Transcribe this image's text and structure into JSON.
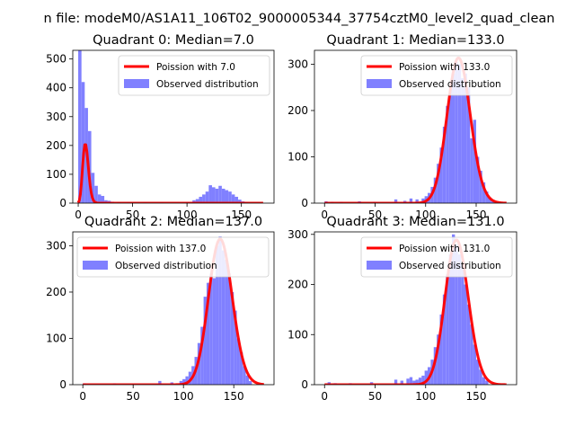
{
  "figure": {
    "suptitle": "n file: modeM0/AS1A11_106T02_9000005344_37754cztM0_level2_quad_clean"
  },
  "chart_data": [
    {
      "type": "bar",
      "title": "Quadrant 0: Median=7.0",
      "xlim": [
        -5,
        180
      ],
      "ylim": [
        0,
        530
      ],
      "xticks": [
        0,
        50,
        100,
        150
      ],
      "yticks": [
        0,
        100,
        200,
        300,
        400,
        500
      ],
      "legend_position": "top-right",
      "series": [
        {
          "name": "Poission with 7.0",
          "kind": "line",
          "color": "#ff0000",
          "lambda": 7.0,
          "scale": 1360,
          "x_range": [
            0,
            170
          ]
        },
        {
          "name": "Observed distribution",
          "kind": "histogram",
          "color": "#8080ff",
          "bars": [
            {
              "x0": 0,
              "x1": 3,
              "y": 530
            },
            {
              "x0": 3,
              "x1": 6,
              "y": 420
            },
            {
              "x0": 6,
              "x1": 9,
              "y": 330
            },
            {
              "x0": 9,
              "x1": 12,
              "y": 250
            },
            {
              "x0": 12,
              "x1": 15,
              "y": 105
            },
            {
              "x0": 15,
              "x1": 18,
              "y": 60
            },
            {
              "x0": 18,
              "x1": 21,
              "y": 30
            },
            {
              "x0": 21,
              "x1": 24,
              "y": 25
            },
            {
              "x0": 24,
              "x1": 27,
              "y": 10
            },
            {
              "x0": 27,
              "x1": 30,
              "y": 8
            },
            {
              "x0": 30,
              "x1": 33,
              "y": 5
            },
            {
              "x0": 36,
              "x1": 39,
              "y": 4
            },
            {
              "x0": 45,
              "x1": 48,
              "y": 3
            },
            {
              "x0": 60,
              "x1": 63,
              "y": 2
            },
            {
              "x0": 75,
              "x1": 78,
              "y": 3
            },
            {
              "x0": 99,
              "x1": 102,
              "y": 4
            },
            {
              "x0": 105,
              "x1": 108,
              "y": 10
            },
            {
              "x0": 108,
              "x1": 111,
              "y": 14
            },
            {
              "x0": 111,
              "x1": 114,
              "y": 22
            },
            {
              "x0": 114,
              "x1": 117,
              "y": 30
            },
            {
              "x0": 117,
              "x1": 120,
              "y": 40
            },
            {
              "x0": 120,
              "x1": 123,
              "y": 62
            },
            {
              "x0": 123,
              "x1": 126,
              "y": 55
            },
            {
              "x0": 126,
              "x1": 129,
              "y": 50
            },
            {
              "x0": 129,
              "x1": 132,
              "y": 60
            },
            {
              "x0": 132,
              "x1": 135,
              "y": 50
            },
            {
              "x0": 135,
              "x1": 138,
              "y": 45
            },
            {
              "x0": 138,
              "x1": 141,
              "y": 40
            },
            {
              "x0": 141,
              "x1": 144,
              "y": 30
            },
            {
              "x0": 144,
              "x1": 147,
              "y": 22
            },
            {
              "x0": 147,
              "x1": 150,
              "y": 12
            },
            {
              "x0": 150,
              "x1": 153,
              "y": 6
            },
            {
              "x0": 153,
              "x1": 156,
              "y": 3
            }
          ]
        }
      ]
    },
    {
      "type": "bar",
      "title": "Quadrant 1: Median=133.0",
      "xlim": [
        -10,
        190
      ],
      "ylim": [
        0,
        330
      ],
      "xticks": [
        0,
        50,
        100,
        150
      ],
      "yticks": [
        0,
        100,
        200,
        300
      ],
      "legend_position": "top-right",
      "series": [
        {
          "name": "Poission with 133.0",
          "kind": "line",
          "color": "#ff0000",
          "lambda": 133.0,
          "scale": 9070,
          "x_range": [
            0,
            180
          ]
        },
        {
          "name": "Observed distribution",
          "kind": "histogram",
          "color": "#8080ff",
          "bars": [
            {
              "x0": 0,
              "x1": 3,
              "y": 4
            },
            {
              "x0": 6,
              "x1": 9,
              "y": 3
            },
            {
              "x0": 15,
              "x1": 18,
              "y": 3
            },
            {
              "x0": 33,
              "x1": 36,
              "y": 4
            },
            {
              "x0": 48,
              "x1": 51,
              "y": 3
            },
            {
              "x0": 69,
              "x1": 72,
              "y": 8
            },
            {
              "x0": 78,
              "x1": 81,
              "y": 5
            },
            {
              "x0": 84,
              "x1": 87,
              "y": 10
            },
            {
              "x0": 90,
              "x1": 93,
              "y": 8
            },
            {
              "x0": 96,
              "x1": 99,
              "y": 10
            },
            {
              "x0": 99,
              "x1": 102,
              "y": 15
            },
            {
              "x0": 102,
              "x1": 105,
              "y": 22
            },
            {
              "x0": 105,
              "x1": 108,
              "y": 35
            },
            {
              "x0": 108,
              "x1": 111,
              "y": 55
            },
            {
              "x0": 111,
              "x1": 114,
              "y": 85
            },
            {
              "x0": 114,
              "x1": 117,
              "y": 120
            },
            {
              "x0": 117,
              "x1": 120,
              "y": 165
            },
            {
              "x0": 120,
              "x1": 123,
              "y": 210
            },
            {
              "x0": 123,
              "x1": 126,
              "y": 245
            },
            {
              "x0": 126,
              "x1": 129,
              "y": 280
            },
            {
              "x0": 129,
              "x1": 132,
              "y": 305
            },
            {
              "x0": 132,
              "x1": 135,
              "y": 300
            },
            {
              "x0": 135,
              "x1": 138,
              "y": 270
            },
            {
              "x0": 138,
              "x1": 141,
              "y": 280
            },
            {
              "x0": 141,
              "x1": 144,
              "y": 250
            },
            {
              "x0": 144,
              "x1": 147,
              "y": 140
            },
            {
              "x0": 147,
              "x1": 150,
              "y": 180
            },
            {
              "x0": 150,
              "x1": 153,
              "y": 100
            },
            {
              "x0": 153,
              "x1": 156,
              "y": 70
            },
            {
              "x0": 156,
              "x1": 159,
              "y": 45
            },
            {
              "x0": 159,
              "x1": 162,
              "y": 25
            },
            {
              "x0": 162,
              "x1": 165,
              "y": 12
            },
            {
              "x0": 165,
              "x1": 168,
              "y": 5
            }
          ]
        }
      ]
    },
    {
      "type": "bar",
      "title": "Quadrant 2: Median=137.0",
      "xlim": [
        -10,
        190
      ],
      "ylim": [
        0,
        330
      ],
      "xticks": [
        0,
        50,
        100,
        150
      ],
      "yticks": [
        0,
        100,
        200,
        300
      ],
      "legend_position": "top-left",
      "series": [
        {
          "name": "Poission with 137.0",
          "kind": "line",
          "color": "#ff0000",
          "lambda": 137.0,
          "scale": 9230,
          "x_range": [
            0,
            180
          ]
        },
        {
          "name": "Observed distribution",
          "kind": "histogram",
          "color": "#8080ff",
          "bars": [
            {
              "x0": 0,
              "x1": 3,
              "y": 3
            },
            {
              "x0": 30,
              "x1": 33,
              "y": 3
            },
            {
              "x0": 75,
              "x1": 78,
              "y": 8
            },
            {
              "x0": 87,
              "x1": 90,
              "y": 5
            },
            {
              "x0": 96,
              "x1": 99,
              "y": 8
            },
            {
              "x0": 99,
              "x1": 102,
              "y": 12
            },
            {
              "x0": 102,
              "x1": 105,
              "y": 18
            },
            {
              "x0": 105,
              "x1": 108,
              "y": 28
            },
            {
              "x0": 108,
              "x1": 111,
              "y": 40
            },
            {
              "x0": 111,
              "x1": 114,
              "y": 60
            },
            {
              "x0": 114,
              "x1": 117,
              "y": 90
            },
            {
              "x0": 117,
              "x1": 120,
              "y": 125
            },
            {
              "x0": 120,
              "x1": 123,
              "y": 190
            },
            {
              "x0": 123,
              "x1": 126,
              "y": 220
            },
            {
              "x0": 126,
              "x1": 129,
              "y": 240
            },
            {
              "x0": 129,
              "x1": 132,
              "y": 230
            },
            {
              "x0": 132,
              "x1": 135,
              "y": 300
            },
            {
              "x0": 135,
              "x1": 138,
              "y": 320
            },
            {
              "x0": 138,
              "x1": 141,
              "y": 290
            },
            {
              "x0": 141,
              "x1": 144,
              "y": 270
            },
            {
              "x0": 144,
              "x1": 147,
              "y": 240
            },
            {
              "x0": 147,
              "x1": 150,
              "y": 200
            },
            {
              "x0": 150,
              "x1": 153,
              "y": 160
            },
            {
              "x0": 153,
              "x1": 156,
              "y": 100
            },
            {
              "x0": 156,
              "x1": 159,
              "y": 70
            },
            {
              "x0": 159,
              "x1": 162,
              "y": 40
            },
            {
              "x0": 162,
              "x1": 165,
              "y": 20
            },
            {
              "x0": 165,
              "x1": 168,
              "y": 8
            }
          ]
        }
      ]
    },
    {
      "type": "bar",
      "title": "Quadrant 3: Median=131.0",
      "xlim": [
        -10,
        190
      ],
      "ylim": [
        0,
        305
      ],
      "xticks": [
        0,
        50,
        100,
        150
      ],
      "yticks": [
        0,
        100,
        200,
        300
      ],
      "legend_position": "top-right",
      "series": [
        {
          "name": "Poission with 131.0",
          "kind": "line",
          "color": "#ff0000",
          "lambda": 131.0,
          "scale": 8290,
          "x_range": [
            0,
            180
          ]
        },
        {
          "name": "Observed distribution",
          "kind": "histogram",
          "color": "#8080ff",
          "bars": [
            {
              "x0": 3,
              "x1": 6,
              "y": 5
            },
            {
              "x0": 9,
              "x1": 12,
              "y": 3
            },
            {
              "x0": 24,
              "x1": 27,
              "y": 3
            },
            {
              "x0": 45,
              "x1": 48,
              "y": 5
            },
            {
              "x0": 69,
              "x1": 72,
              "y": 10
            },
            {
              "x0": 75,
              "x1": 78,
              "y": 8
            },
            {
              "x0": 81,
              "x1": 84,
              "y": 12
            },
            {
              "x0": 84,
              "x1": 87,
              "y": 15
            },
            {
              "x0": 87,
              "x1": 90,
              "y": 8
            },
            {
              "x0": 90,
              "x1": 93,
              "y": 10
            },
            {
              "x0": 93,
              "x1": 96,
              "y": 14
            },
            {
              "x0": 96,
              "x1": 99,
              "y": 18
            },
            {
              "x0": 99,
              "x1": 102,
              "y": 28
            },
            {
              "x0": 102,
              "x1": 105,
              "y": 35
            },
            {
              "x0": 105,
              "x1": 108,
              "y": 50
            },
            {
              "x0": 108,
              "x1": 111,
              "y": 75
            },
            {
              "x0": 111,
              "x1": 114,
              "y": 100
            },
            {
              "x0": 114,
              "x1": 117,
              "y": 140
            },
            {
              "x0": 117,
              "x1": 120,
              "y": 180
            },
            {
              "x0": 120,
              "x1": 123,
              "y": 220
            },
            {
              "x0": 123,
              "x1": 126,
              "y": 260
            },
            {
              "x0": 126,
              "x1": 129,
              "y": 300
            },
            {
              "x0": 129,
              "x1": 132,
              "y": 280
            },
            {
              "x0": 132,
              "x1": 135,
              "y": 260
            },
            {
              "x0": 135,
              "x1": 138,
              "y": 240
            },
            {
              "x0": 138,
              "x1": 141,
              "y": 200
            },
            {
              "x0": 141,
              "x1": 144,
              "y": 160
            },
            {
              "x0": 144,
              "x1": 147,
              "y": 120
            },
            {
              "x0": 147,
              "x1": 150,
              "y": 80
            },
            {
              "x0": 150,
              "x1": 153,
              "y": 50
            },
            {
              "x0": 153,
              "x1": 156,
              "y": 30
            },
            {
              "x0": 156,
              "x1": 159,
              "y": 15
            },
            {
              "x0": 159,
              "x1": 162,
              "y": 8
            }
          ]
        }
      ]
    }
  ]
}
